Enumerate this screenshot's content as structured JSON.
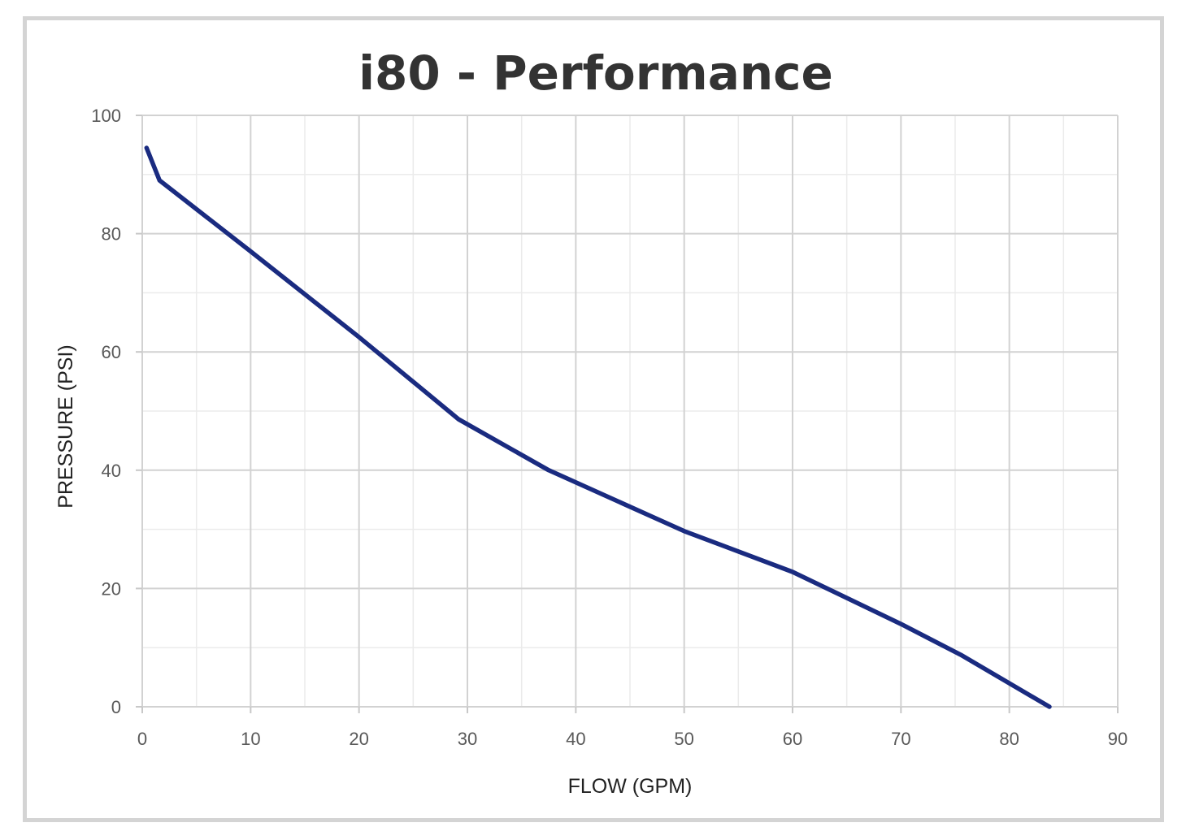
{
  "chart_data": {
    "type": "line",
    "title": "i80 - Performance",
    "xlabel": "FLOW (GPM)",
    "ylabel": "PRESSURE (PSI)",
    "xlim": [
      0,
      90
    ],
    "ylim": [
      0,
      100
    ],
    "x_ticks": [
      0,
      10,
      20,
      30,
      40,
      50,
      60,
      70,
      80,
      90
    ],
    "y_ticks": [
      0,
      20,
      40,
      60,
      80,
      100
    ],
    "x_minor_ticks": [
      5,
      15,
      25,
      35,
      45,
      55,
      65,
      75,
      85
    ],
    "y_minor_ticks": [
      10,
      30,
      50,
      70,
      90
    ],
    "grid": true,
    "legend": "none",
    "series": [
      {
        "color": "#1a2b80",
        "points": [
          [
            0.4,
            94.5
          ],
          [
            1.6,
            89.0
          ],
          [
            10.0,
            77.0
          ],
          [
            20.0,
            62.5
          ],
          [
            29.2,
            48.6
          ],
          [
            37.5,
            40.0
          ],
          [
            50.0,
            29.7
          ],
          [
            60.0,
            22.8
          ],
          [
            70.0,
            14.0
          ],
          [
            75.5,
            8.8
          ],
          [
            83.7,
            0.0
          ]
        ]
      }
    ]
  }
}
